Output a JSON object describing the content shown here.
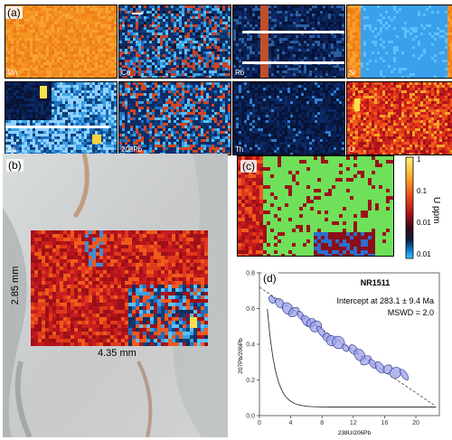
{
  "panels": {
    "a_tag": "(a)",
    "b_tag": "(b)",
    "c_tag": "(c)",
    "d_tag": "(d)"
  },
  "elements": [
    "Mn",
    "Cu",
    "Rb",
    "Sr",
    "Ba",
    "208Pb",
    "Th",
    "U"
  ],
  "photo": {
    "height_label": "2.85 mm",
    "width_label": "4.35 mm"
  },
  "colorbar": {
    "label": "U ppm",
    "ticks": [
      "1",
      "0.1",
      "0.01",
      "0.01"
    ]
  },
  "chart_data": {
    "type": "scatter",
    "title": "NR1511",
    "annotation_1": "Intercept at 283.1 ± 9.4 Ma",
    "annotation_2": "MSWD = 2.0",
    "xlabel": "238U/206Pb",
    "ylabel": "207Pb/206Pb",
    "xlim": [
      0,
      23
    ],
    "ylim": [
      0,
      0.8
    ],
    "xticks": [
      "0",
      "4",
      "8",
      "12",
      "16",
      "20"
    ],
    "yticks": [
      "0.0",
      "0.2",
      "0.4",
      "0.6",
      "0.8"
    ],
    "points": [
      {
        "x": 1.6,
        "y": 0.65
      },
      {
        "x": 2.6,
        "y": 0.63
      },
      {
        "x": 3.6,
        "y": 0.6
      },
      {
        "x": 4.4,
        "y": 0.58
      },
      {
        "x": 5.3,
        "y": 0.56
      },
      {
        "x": 6.0,
        "y": 0.53
      },
      {
        "x": 6.6,
        "y": 0.52
      },
      {
        "x": 7.2,
        "y": 0.5
      },
      {
        "x": 7.9,
        "y": 0.47
      },
      {
        "x": 8.6,
        "y": 0.44
      },
      {
        "x": 9.2,
        "y": 0.42
      },
      {
        "x": 10.1,
        "y": 0.41
      },
      {
        "x": 11.0,
        "y": 0.38
      },
      {
        "x": 12.0,
        "y": 0.37
      },
      {
        "x": 12.8,
        "y": 0.34
      },
      {
        "x": 13.6,
        "y": 0.31
      },
      {
        "x": 14.5,
        "y": 0.29
      },
      {
        "x": 15.4,
        "y": 0.27
      },
      {
        "x": 16.4,
        "y": 0.26
      },
      {
        "x": 17.4,
        "y": 0.24
      },
      {
        "x": 18.5,
        "y": 0.23
      }
    ],
    "regression_line": {
      "x": [
        0,
        22.3
      ],
      "y": [
        0.72,
        0.06
      ]
    },
    "concordia_curve_shown": true
  }
}
